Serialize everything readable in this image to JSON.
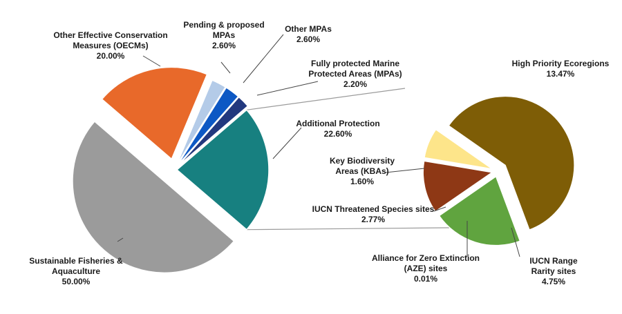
{
  "chart_data": [
    {
      "type": "pie",
      "title": "",
      "slices": [
        {
          "name": "Sustainable Fisheries &\nAquaculture",
          "value": 50.0,
          "value_label": "50.00%",
          "color": "#9b9b9b"
        },
        {
          "name": "Other Effective Conservation\nMeasures (OECMs)",
          "value": 20.0,
          "value_label": "20.00%",
          "color": "#e8692a"
        },
        {
          "name": "Pending & proposed\nMPAs",
          "value": 2.6,
          "value_label": "2.60%",
          "color": "#b4cbe8"
        },
        {
          "name": "Other MPAs",
          "value": 2.6,
          "value_label": "2.60%",
          "color": "#0d58c4"
        },
        {
          "name": "Fully protected Marine\nProtected Areas (MPAs)",
          "value": 2.2,
          "value_label": "2.20%",
          "color": "#22387e"
        },
        {
          "name": "Additional Protection",
          "value": 22.6,
          "value_label": "22.60%",
          "color": "#178080"
        }
      ]
    },
    {
      "type": "pie",
      "title": "",
      "breakdown_of": "Additional Protection",
      "slices": [
        {
          "name": "High Priority Ecoregions",
          "value": 13.47,
          "value_label": "13.47%",
          "color": "#7e5d06"
        },
        {
          "name": "IUCN Range\nRarity sites",
          "value": 4.75,
          "value_label": "4.75%",
          "color": "#60a43f"
        },
        {
          "name": "Alliance for Zero Extinction\n(AZE) sites",
          "value": 0.01,
          "value_label": "0.01%",
          "color": "#c0c0c0"
        },
        {
          "name": "IUCN Threatened Species sites",
          "value": 2.77,
          "value_label": "2.77%",
          "color": "#8e3815"
        },
        {
          "name": "Key Biodiversity\nAreas (KBAs)",
          "value": 1.6,
          "value_label": "1.60%",
          "color": "#fde58a"
        }
      ]
    }
  ]
}
